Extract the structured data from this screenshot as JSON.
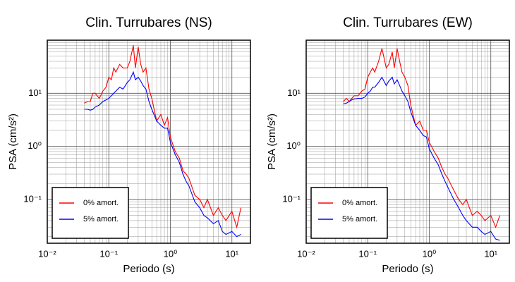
{
  "chart_data": [
    {
      "type": "line",
      "title": "Clin. Turrubares (NS)",
      "xlabel": "Periodo (s)",
      "ylabel": "PSA (cm/s²)",
      "log_x": true,
      "log_y": true,
      "grid": true,
      "legend": "lower left",
      "xlim": [
        0.01,
        20
      ],
      "ylim": [
        0.015,
        100
      ],
      "xticks": [
        {
          "value": 0.01,
          "label": "10⁻²"
        },
        {
          "value": 0.1,
          "label": "10⁻¹"
        },
        {
          "value": 1,
          "label": "10⁰"
        },
        {
          "value": 10,
          "label": "10¹"
        }
      ],
      "yticks": [
        {
          "value": 0.1,
          "label": "10⁻¹"
        },
        {
          "value": 1,
          "label": "10⁰"
        },
        {
          "value": 10,
          "label": "10¹"
        }
      ],
      "x": [
        0.04,
        0.045,
        0.05,
        0.055,
        0.06,
        0.07,
        0.08,
        0.09,
        0.1,
        0.11,
        0.12,
        0.13,
        0.15,
        0.17,
        0.2,
        0.22,
        0.25,
        0.27,
        0.3,
        0.33,
        0.36,
        0.4,
        0.45,
        0.5,
        0.6,
        0.7,
        0.8,
        0.9,
        1.0,
        1.2,
        1.4,
        1.6,
        1.8,
        2.0,
        2.5,
        3.0,
        3.5,
        4.0,
        5.0,
        6.0,
        7.0,
        8.0,
        10,
        12,
        14
      ],
      "series": [
        {
          "name": "0% amort.",
          "color": "#ff0000",
          "values": [
            6.5,
            7,
            7,
            10,
            10,
            8,
            11,
            13,
            20,
            18,
            30,
            25,
            35,
            30,
            30,
            40,
            80,
            30,
            75,
            35,
            25,
            30,
            12,
            8,
            3,
            4,
            2.5,
            3.5,
            1.5,
            0.8,
            0.6,
            0.35,
            0.3,
            0.25,
            0.12,
            0.1,
            0.07,
            0.1,
            0.05,
            0.07,
            0.05,
            0.04,
            0.06,
            0.03,
            0.07
          ]
        },
        {
          "name": "5% amort.",
          "color": "#0000ff",
          "values": [
            5,
            5,
            4.8,
            5,
            5.5,
            6,
            7,
            7.5,
            8,
            9,
            10,
            11,
            13,
            12,
            16,
            18,
            25,
            18,
            20,
            17,
            14,
            12,
            7,
            5,
            3,
            2.5,
            2.2,
            2.2,
            1.2,
            0.7,
            0.5,
            0.3,
            0.22,
            0.18,
            0.09,
            0.07,
            0.05,
            0.045,
            0.035,
            0.04,
            0.025,
            0.022,
            0.025,
            0.02,
            0.022
          ]
        }
      ]
    },
    {
      "type": "line",
      "title": "Clin. Turrubares (EW)",
      "xlabel": "Periodo (s)",
      "ylabel": "PSA (cm/s²)",
      "log_x": true,
      "log_y": true,
      "grid": true,
      "legend": "lower left",
      "xlim": [
        0.01,
        20
      ],
      "ylim": [
        0.015,
        100
      ],
      "xticks": [
        {
          "value": 0.01,
          "label": "10⁻²"
        },
        {
          "value": 0.1,
          "label": "10⁻¹"
        },
        {
          "value": 1,
          "label": "10⁰"
        },
        {
          "value": 10,
          "label": "10¹"
        }
      ],
      "yticks": [
        {
          "value": 0.1,
          "label": "10⁻¹"
        },
        {
          "value": 1,
          "label": "10⁰"
        },
        {
          "value": 10,
          "label": "10¹"
        }
      ],
      "x": [
        0.04,
        0.045,
        0.05,
        0.055,
        0.06,
        0.07,
        0.08,
        0.09,
        0.1,
        0.11,
        0.12,
        0.13,
        0.15,
        0.17,
        0.2,
        0.22,
        0.25,
        0.27,
        0.3,
        0.33,
        0.36,
        0.4,
        0.45,
        0.5,
        0.6,
        0.7,
        0.8,
        0.9,
        1.0,
        1.2,
        1.4,
        1.6,
        1.8,
        2.0,
        2.5,
        3.0,
        3.5,
        4.0,
        5.0,
        6.0,
        7.0,
        8.0,
        10,
        12,
        14
      ],
      "series": [
        {
          "name": "0% amort.",
          "color": "#ff0000",
          "values": [
            7,
            8,
            7,
            8,
            9,
            9,
            11,
            12,
            20,
            25,
            30,
            25,
            40,
            70,
            30,
            35,
            60,
            30,
            70,
            40,
            25,
            20,
            14,
            6,
            2.5,
            3,
            2,
            2,
            1.2,
            0.8,
            0.6,
            0.4,
            0.3,
            0.25,
            0.15,
            0.1,
            0.08,
            0.1,
            0.05,
            0.06,
            0.05,
            0.04,
            0.05,
            0.03,
            0.05
          ]
        },
        {
          "name": "5% amort.",
          "color": "#0000ff",
          "values": [
            6.3,
            6.5,
            7,
            7.5,
            7.8,
            8,
            8,
            8.5,
            10,
            11,
            13,
            13,
            16,
            20,
            14,
            17,
            20,
            15,
            18,
            14,
            11,
            9,
            7,
            4.5,
            2.5,
            2,
            1.6,
            1.5,
            0.9,
            0.6,
            0.45,
            0.3,
            0.22,
            0.17,
            0.1,
            0.07,
            0.05,
            0.04,
            0.03,
            0.03,
            0.025,
            0.022,
            0.025,
            0.018,
            0.017
          ]
        }
      ]
    }
  ]
}
